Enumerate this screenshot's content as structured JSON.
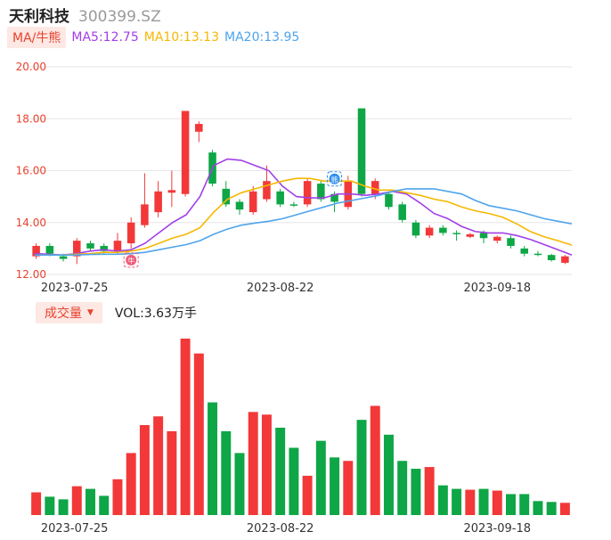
{
  "header": {
    "name": "天利科技",
    "code": "300399.SZ"
  },
  "ma_legend": {
    "button": "MA/牛熊",
    "items": [
      {
        "text": "MA5:12.75",
        "color": "#a23ee8"
      },
      {
        "text": "MA10:13.13",
        "color": "#f5b800"
      },
      {
        "text": "MA20:13.95",
        "color": "#4ea4ec"
      }
    ]
  },
  "volume_legend": {
    "button": "成交量",
    "text": "VOL:3.63万手"
  },
  "colors": {
    "up": "#f23838",
    "down": "#0ea646",
    "grid": "#e6e6e6",
    "axis_label": "#e8422e",
    "date_label": "#333333"
  },
  "chart_data": {
    "type": "candlestick",
    "ylim": [
      12.0,
      20.0
    ],
    "yticks": [
      "20.00",
      "18.00",
      "16.00",
      "14.00",
      "12.00"
    ],
    "xticks": [
      {
        "label": "2023-07-25",
        "index": 0
      },
      {
        "label": "2023-08-22",
        "index": 18
      },
      {
        "label": "2023-09-18",
        "index": 34
      }
    ],
    "markers": [
      {
        "label": "牛",
        "index": 7,
        "color": "#f05a78"
      },
      {
        "label": "熊",
        "index": 22,
        "color": "#2e8ef0"
      }
    ],
    "candles": [
      {
        "o": 12.7,
        "c": 13.1,
        "h": 13.2,
        "l": 12.6
      },
      {
        "o": 13.1,
        "c": 12.8,
        "h": 13.2,
        "l": 12.7
      },
      {
        "o": 12.7,
        "c": 12.6,
        "h": 12.8,
        "l": 12.5
      },
      {
        "o": 12.7,
        "c": 13.3,
        "h": 13.4,
        "l": 12.4
      },
      {
        "o": 13.2,
        "c": 13.0,
        "h": 13.3,
        "l": 12.9
      },
      {
        "o": 13.1,
        "c": 12.9,
        "h": 13.2,
        "l": 12.8
      },
      {
        "o": 12.9,
        "c": 13.3,
        "h": 13.6,
        "l": 12.8
      },
      {
        "o": 13.2,
        "c": 14.0,
        "h": 14.2,
        "l": 13.0
      },
      {
        "o": 13.9,
        "c": 14.7,
        "h": 15.9,
        "l": 13.8
      },
      {
        "o": 14.4,
        "c": 15.2,
        "h": 15.6,
        "l": 14.2
      },
      {
        "o": 15.15,
        "c": 15.25,
        "h": 16.0,
        "l": 14.6
      },
      {
        "o": 15.1,
        "c": 18.3,
        "h": 18.3,
        "l": 15.0
      },
      {
        "o": 17.5,
        "c": 17.8,
        "h": 17.9,
        "l": 17.1
      },
      {
        "o": 16.7,
        "c": 15.5,
        "h": 16.8,
        "l": 15.4
      },
      {
        "o": 15.3,
        "c": 14.7,
        "h": 15.6,
        "l": 14.6
      },
      {
        "o": 14.8,
        "c": 14.5,
        "h": 14.9,
        "l": 14.3
      },
      {
        "o": 14.4,
        "c": 15.2,
        "h": 15.4,
        "l": 14.3
      },
      {
        "o": 14.9,
        "c": 15.6,
        "h": 16.2,
        "l": 14.8
      },
      {
        "o": 15.2,
        "c": 14.7,
        "h": 15.3,
        "l": 14.6
      },
      {
        "o": 14.7,
        "c": 14.65,
        "h": 14.8,
        "l": 14.6
      },
      {
        "o": 14.7,
        "c": 15.6,
        "h": 15.7,
        "l": 14.6
      },
      {
        "o": 15.5,
        "c": 14.9,
        "h": 15.6,
        "l": 14.8
      },
      {
        "o": 15.1,
        "c": 14.8,
        "h": 15.2,
        "l": 14.4
      },
      {
        "o": 14.6,
        "c": 15.6,
        "h": 15.8,
        "l": 14.5
      },
      {
        "o": 18.4,
        "c": 15.1,
        "h": 18.4,
        "l": 15.0
      },
      {
        "o": 15.1,
        "c": 15.6,
        "h": 15.7,
        "l": 14.9
      },
      {
        "o": 15.1,
        "c": 14.6,
        "h": 15.2,
        "l": 14.5
      },
      {
        "o": 14.7,
        "c": 14.1,
        "h": 14.8,
        "l": 14.0
      },
      {
        "o": 14.0,
        "c": 13.5,
        "h": 14.1,
        "l": 13.4
      },
      {
        "o": 13.5,
        "c": 13.8,
        "h": 13.9,
        "l": 13.4
      },
      {
        "o": 13.8,
        "c": 13.6,
        "h": 13.9,
        "l": 13.5
      },
      {
        "o": 13.6,
        "c": 13.55,
        "h": 13.7,
        "l": 13.3
      },
      {
        "o": 13.45,
        "c": 13.55,
        "h": 13.6,
        "l": 13.4
      },
      {
        "o": 13.6,
        "c": 13.4,
        "h": 13.7,
        "l": 13.2
      },
      {
        "o": 13.3,
        "c": 13.45,
        "h": 13.5,
        "l": 13.2
      },
      {
        "o": 13.4,
        "c": 13.1,
        "h": 13.5,
        "l": 13.0
      },
      {
        "o": 13.0,
        "c": 12.8,
        "h": 13.1,
        "l": 12.7
      },
      {
        "o": 12.8,
        "c": 12.75,
        "h": 12.9,
        "l": 12.7
      },
      {
        "o": 12.75,
        "c": 12.55,
        "h": 12.8,
        "l": 12.5
      },
      {
        "o": 12.45,
        "c": 12.7,
        "h": 12.75,
        "l": 12.4
      }
    ],
    "ma5": [
      12.8,
      12.78,
      12.75,
      12.8,
      12.9,
      12.95,
      12.9,
      12.95,
      13.2,
      13.6,
      14.0,
      14.3,
      15.0,
      16.2,
      16.45,
      16.4,
      16.2,
      16.0,
      15.4,
      15.0,
      14.95,
      14.95,
      15.1,
      15.1,
      15.05,
      15.1,
      15.2,
      15.1,
      14.75,
      14.35,
      14.15,
      13.85,
      13.65,
      13.6,
      13.6,
      13.5,
      13.35,
      13.15,
      12.95,
      12.75
    ],
    "ma10": [
      12.75,
      12.75,
      12.75,
      12.78,
      12.8,
      12.85,
      12.85,
      12.9,
      13.0,
      13.2,
      13.4,
      13.55,
      13.8,
      14.4,
      14.9,
      15.15,
      15.3,
      15.45,
      15.6,
      15.7,
      15.7,
      15.6,
      15.6,
      15.6,
      15.4,
      15.25,
      15.25,
      15.15,
      15.05,
      14.9,
      14.8,
      14.6,
      14.45,
      14.35,
      14.2,
      13.95,
      13.65,
      13.45,
      13.3,
      13.13
    ],
    "ma20": [
      12.75,
      12.75,
      12.75,
      12.75,
      12.77,
      12.78,
      12.78,
      12.8,
      12.85,
      12.95,
      13.05,
      13.15,
      13.3,
      13.55,
      13.75,
      13.9,
      13.98,
      14.05,
      14.15,
      14.3,
      14.45,
      14.6,
      14.75,
      14.85,
      14.95,
      15.05,
      15.2,
      15.3,
      15.3,
      15.3,
      15.2,
      15.1,
      14.85,
      14.65,
      14.55,
      14.45,
      14.3,
      14.15,
      14.05,
      13.95
    ],
    "volume": [
      26,
      21,
      18,
      33,
      30,
      22,
      41,
      71,
      103,
      113,
      96,
      202,
      185,
      129,
      96,
      71,
      118,
      115,
      100,
      77,
      45,
      85,
      66,
      62,
      109,
      125,
      92,
      62,
      53,
      55,
      34,
      30,
      29,
      30,
      28,
      24,
      24,
      16,
      15,
      14
    ]
  }
}
